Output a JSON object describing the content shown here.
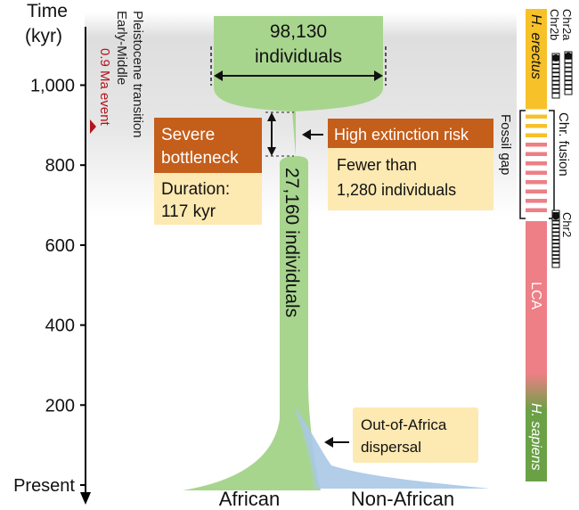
{
  "axis": {
    "title_line1": "Time",
    "title_line2": "(kyr)",
    "ticks": [
      {
        "label": "1,000",
        "kyr": 1000
      },
      {
        "label": "800",
        "kyr": 800
      },
      {
        "label": "600",
        "kyr": 600
      },
      {
        "label": "400",
        "kyr": 400
      },
      {
        "label": "200",
        "kyr": 200
      },
      {
        "label": "Present",
        "kyr": 0
      }
    ]
  },
  "transition": {
    "line1": "Early-Middle",
    "line2": "Pleistocene transition",
    "event_label": "0.9 Ma event",
    "event_kyr": 900,
    "band_kyr": [
      670,
      1150
    ]
  },
  "ancestral": {
    "count": "98,130",
    "unit": "individuals"
  },
  "bottleneck": {
    "start_kyr": 930,
    "end_kyr": 813,
    "title_line1": "Severe",
    "title_line2": "bottleneck",
    "duration_line1": "Duration:",
    "duration_line2": "117 kyr"
  },
  "extinction": {
    "title": "High extinction risk",
    "line1": "Fewer than",
    "line2": "1,280 individuals"
  },
  "recovered": {
    "label": "27,160 individuals"
  },
  "dispersal": {
    "line1": "Out-of-Africa",
    "line2": "dispersal"
  },
  "populations": {
    "african": "African",
    "non_african": "Non-African"
  },
  "lineage_bar": {
    "erectus": "H. erectus",
    "lca": "LCA",
    "sapiens": "H. sapiens",
    "fossil_gap": "Fossil gap",
    "fusion": "Chr. fusion",
    "chr2a": "Chr2a",
    "chr2b": "Chr2b",
    "chr2": "Chr2"
  },
  "colors": {
    "african_green": "#a8d58e",
    "non_african_blue": "#a9c8e6",
    "bottleneck_orange": "#c45e1b",
    "box_cream": "#fde9b2",
    "erectus_yellow": "#f7c12a",
    "lca_pink": "#ee7f86",
    "sapiens_green": "#6aa145",
    "event_red": "#b3141b",
    "band_grey": "#e6e6e6"
  }
}
